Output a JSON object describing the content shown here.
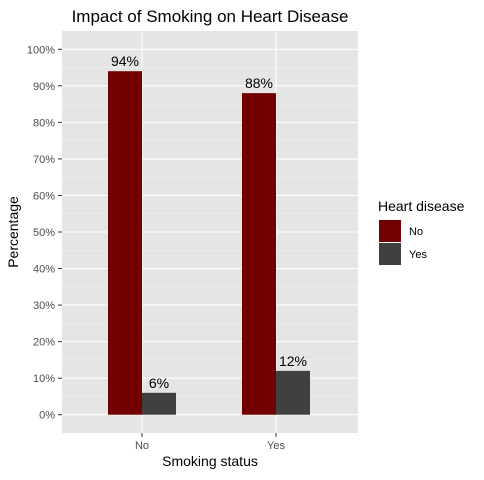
{
  "chart_data": {
    "type": "bar",
    "title": "Impact of Smoking on Heart Disease",
    "xlabel": "Smoking status",
    "ylabel": "Percentage",
    "categories": [
      "No",
      "Yes"
    ],
    "series": [
      {
        "name": "No",
        "values": [
          94,
          88
        ],
        "labels": [
          "94%",
          "88%"
        ],
        "color": "#730000"
      },
      {
        "name": "Yes",
        "values": [
          6,
          12
        ],
        "labels": [
          "6%",
          "12%"
        ],
        "color": "#404040"
      }
    ],
    "ylim": [
      -5,
      105
    ],
    "yticks": [
      0,
      10,
      20,
      30,
      40,
      50,
      60,
      70,
      80,
      90,
      100
    ],
    "ytick_labels": [
      "0%",
      "10%",
      "20%",
      "30%",
      "40%",
      "50%",
      "60%",
      "70%",
      "80%",
      "90%",
      "100%"
    ],
    "legend": {
      "title": "Heart disease",
      "placement": "right"
    },
    "grid": true,
    "panel_background": "#e5e5e5"
  }
}
